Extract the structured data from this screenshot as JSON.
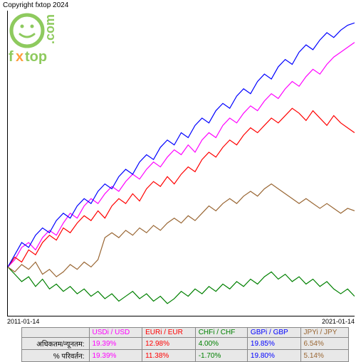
{
  "copyright": "Copyright fxtop 2024",
  "logo": {
    "brand": "fxtop",
    "domain": ".com",
    "face_color": "#7bc142",
    "x_color": "#ff8c1a"
  },
  "chart": {
    "type": "line",
    "background_color": "#ffffff",
    "axis_color": "#000000",
    "x_range": [
      "2011-01-14",
      "2021-01-14"
    ],
    "x_labels": {
      "left": "2011-01-14",
      "right": "2021-01-14"
    },
    "line_width": 1.2,
    "series": [
      {
        "name": "USDi / USD",
        "color": "#ff00ff",
        "points": [
          [
            0,
            0
          ],
          [
            2,
            3
          ],
          [
            4,
            8
          ],
          [
            6,
            10
          ],
          [
            8,
            7
          ],
          [
            10,
            12
          ],
          [
            12,
            15
          ],
          [
            14,
            13
          ],
          [
            16,
            18
          ],
          [
            18,
            22
          ],
          [
            20,
            20
          ],
          [
            22,
            25
          ],
          [
            24,
            28
          ],
          [
            26,
            26
          ],
          [
            28,
            30
          ],
          [
            30,
            33
          ],
          [
            32,
            31
          ],
          [
            34,
            35
          ],
          [
            36,
            38
          ],
          [
            38,
            36
          ],
          [
            40,
            40
          ],
          [
            42,
            43
          ],
          [
            44,
            41
          ],
          [
            46,
            45
          ],
          [
            48,
            48
          ],
          [
            50,
            46
          ],
          [
            52,
            50
          ],
          [
            54,
            47
          ],
          [
            56,
            52
          ],
          [
            58,
            55
          ],
          [
            60,
            53
          ],
          [
            62,
            58
          ],
          [
            64,
            61
          ],
          [
            66,
            59
          ],
          [
            68,
            63
          ],
          [
            70,
            66
          ],
          [
            72,
            64
          ],
          [
            74,
            68
          ],
          [
            76,
            71
          ],
          [
            78,
            69
          ],
          [
            80,
            73
          ],
          [
            82,
            76
          ],
          [
            84,
            74
          ],
          [
            86,
            78
          ],
          [
            88,
            81
          ],
          [
            90,
            79
          ],
          [
            92,
            83
          ],
          [
            94,
            86
          ],
          [
            96,
            88
          ],
          [
            98,
            90
          ],
          [
            100,
            92
          ]
        ]
      },
      {
        "name": "EURi / EUR",
        "color": "#ff0000",
        "points": [
          [
            0,
            0
          ],
          [
            2,
            4
          ],
          [
            4,
            2
          ],
          [
            6,
            7
          ],
          [
            8,
            5
          ],
          [
            10,
            10
          ],
          [
            12,
            13
          ],
          [
            14,
            11
          ],
          [
            16,
            16
          ],
          [
            18,
            14
          ],
          [
            20,
            18
          ],
          [
            22,
            21
          ],
          [
            24,
            19
          ],
          [
            26,
            23
          ],
          [
            28,
            20
          ],
          [
            30,
            25
          ],
          [
            32,
            28
          ],
          [
            34,
            26
          ],
          [
            36,
            30
          ],
          [
            38,
            27
          ],
          [
            40,
            32
          ],
          [
            42,
            35
          ],
          [
            44,
            33
          ],
          [
            46,
            37
          ],
          [
            48,
            34
          ],
          [
            50,
            38
          ],
          [
            52,
            41
          ],
          [
            54,
            39
          ],
          [
            56,
            44
          ],
          [
            58,
            47
          ],
          [
            60,
            45
          ],
          [
            62,
            49
          ],
          [
            64,
            52
          ],
          [
            66,
            50
          ],
          [
            68,
            54
          ],
          [
            70,
            57
          ],
          [
            72,
            55
          ],
          [
            74,
            58
          ],
          [
            76,
            61
          ],
          [
            78,
            59
          ],
          [
            80,
            62
          ],
          [
            82,
            65
          ],
          [
            84,
            63
          ],
          [
            86,
            60
          ],
          [
            88,
            64
          ],
          [
            90,
            61
          ],
          [
            92,
            58
          ],
          [
            94,
            62
          ],
          [
            96,
            59
          ],
          [
            98,
            57
          ],
          [
            100,
            55
          ]
        ]
      },
      {
        "name": "CHFi / CHF",
        "color": "#008000",
        "points": [
          [
            0,
            0
          ],
          [
            2,
            -3
          ],
          [
            4,
            -6
          ],
          [
            6,
            -4
          ],
          [
            8,
            -8
          ],
          [
            10,
            -5
          ],
          [
            12,
            -9
          ],
          [
            14,
            -7
          ],
          [
            16,
            -10
          ],
          [
            18,
            -8
          ],
          [
            20,
            -11
          ],
          [
            22,
            -9
          ],
          [
            24,
            -12
          ],
          [
            26,
            -10
          ],
          [
            28,
            -13
          ],
          [
            30,
            -11
          ],
          [
            32,
            -14
          ],
          [
            34,
            -12
          ],
          [
            36,
            -10
          ],
          [
            38,
            -13
          ],
          [
            40,
            -11
          ],
          [
            42,
            -14
          ],
          [
            44,
            -12
          ],
          [
            46,
            -15
          ],
          [
            48,
            -13
          ],
          [
            50,
            -10
          ],
          [
            52,
            -12
          ],
          [
            54,
            -9
          ],
          [
            56,
            -11
          ],
          [
            58,
            -8
          ],
          [
            60,
            -10
          ],
          [
            62,
            -7
          ],
          [
            64,
            -9
          ],
          [
            66,
            -6
          ],
          [
            68,
            -8
          ],
          [
            70,
            -5
          ],
          [
            72,
            -7
          ],
          [
            74,
            -4
          ],
          [
            76,
            -2
          ],
          [
            78,
            -5
          ],
          [
            80,
            -3
          ],
          [
            82,
            -6
          ],
          [
            84,
            -4
          ],
          [
            86,
            -7
          ],
          [
            88,
            -5
          ],
          [
            90,
            -8
          ],
          [
            92,
            -6
          ],
          [
            94,
            -9
          ],
          [
            96,
            -11
          ],
          [
            98,
            -9
          ],
          [
            100,
            -12
          ]
        ]
      },
      {
        "name": "GBPi / GBP",
        "color": "#0000ff",
        "points": [
          [
            0,
            0
          ],
          [
            2,
            5
          ],
          [
            4,
            10
          ],
          [
            6,
            8
          ],
          [
            8,
            13
          ],
          [
            10,
            16
          ],
          [
            12,
            14
          ],
          [
            14,
            19
          ],
          [
            16,
            22
          ],
          [
            18,
            20
          ],
          [
            20,
            25
          ],
          [
            22,
            28
          ],
          [
            24,
            26
          ],
          [
            26,
            31
          ],
          [
            28,
            34
          ],
          [
            30,
            32
          ],
          [
            32,
            37
          ],
          [
            34,
            40
          ],
          [
            36,
            38
          ],
          [
            38,
            43
          ],
          [
            40,
            46
          ],
          [
            42,
            44
          ],
          [
            44,
            49
          ],
          [
            46,
            52
          ],
          [
            48,
            50
          ],
          [
            50,
            55
          ],
          [
            52,
            53
          ],
          [
            54,
            58
          ],
          [
            56,
            61
          ],
          [
            58,
            59
          ],
          [
            60,
            64
          ],
          [
            62,
            67
          ],
          [
            64,
            65
          ],
          [
            66,
            70
          ],
          [
            68,
            73
          ],
          [
            70,
            71
          ],
          [
            72,
            76
          ],
          [
            74,
            79
          ],
          [
            76,
            77
          ],
          [
            78,
            82
          ],
          [
            80,
            85
          ],
          [
            82,
            83
          ],
          [
            84,
            88
          ],
          [
            86,
            91
          ],
          [
            88,
            89
          ],
          [
            90,
            93
          ],
          [
            92,
            96
          ],
          [
            94,
            94
          ],
          [
            96,
            97
          ],
          [
            98,
            99
          ],
          [
            100,
            100
          ]
        ]
      },
      {
        "name": "JPYi / JPY",
        "color": "#996633",
        "points": [
          [
            0,
            0
          ],
          [
            2,
            -2
          ],
          [
            4,
            1
          ],
          [
            6,
            -1
          ],
          [
            8,
            2
          ],
          [
            10,
            -3
          ],
          [
            12,
            -1
          ],
          [
            14,
            -4
          ],
          [
            16,
            -2
          ],
          [
            18,
            1
          ],
          [
            20,
            -1
          ],
          [
            22,
            2
          ],
          [
            24,
            0
          ],
          [
            26,
            3
          ],
          [
            28,
            12
          ],
          [
            30,
            14
          ],
          [
            32,
            12
          ],
          [
            34,
            15
          ],
          [
            36,
            13
          ],
          [
            38,
            16
          ],
          [
            40,
            14
          ],
          [
            42,
            17
          ],
          [
            44,
            15
          ],
          [
            46,
            18
          ],
          [
            48,
            20
          ],
          [
            50,
            18
          ],
          [
            52,
            21
          ],
          [
            54,
            19
          ],
          [
            56,
            22
          ],
          [
            58,
            25
          ],
          [
            60,
            23
          ],
          [
            62,
            26
          ],
          [
            64,
            28
          ],
          [
            66,
            26
          ],
          [
            68,
            29
          ],
          [
            70,
            31
          ],
          [
            72,
            29
          ],
          [
            74,
            32
          ],
          [
            76,
            34
          ],
          [
            78,
            32
          ],
          [
            80,
            30
          ],
          [
            82,
            28
          ],
          [
            84,
            26
          ],
          [
            86,
            28
          ],
          [
            88,
            26
          ],
          [
            90,
            24
          ],
          [
            92,
            26
          ],
          [
            94,
            24
          ],
          [
            96,
            22
          ],
          [
            98,
            24
          ],
          [
            100,
            23
          ]
        ]
      }
    ]
  },
  "stats_table": {
    "row_labels": [
      "अधिकतम/न्यूनतम:",
      "% परिवर्तन:"
    ],
    "columns": [
      {
        "header": "USDi / USD",
        "color": "#ff00ff",
        "max": "19.39%",
        "change": "19.39%"
      },
      {
        "header": "EURi / EUR",
        "color": "#ff0000",
        "max": "12.98%",
        "change": "11.38%"
      },
      {
        "header": "CHFi / CHF",
        "color": "#008000",
        "max": "4.00%",
        "change": "-1.70%"
      },
      {
        "header": "GBPi / GBP",
        "color": "#0000ff",
        "max": "19.85%",
        "change": "19.80%"
      },
      {
        "header": "JPYi / JPY",
        "color": "#996633",
        "max": "6.54%",
        "change": "5.14%"
      }
    ]
  }
}
